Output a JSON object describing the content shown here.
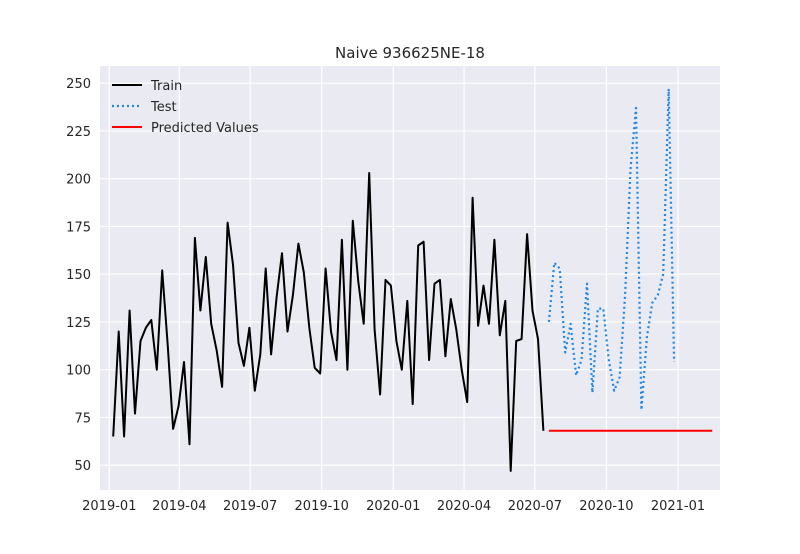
{
  "chart_data": {
    "type": "line",
    "title": "Naive 936625NE-18",
    "xlabel": "",
    "ylabel": "",
    "ylim": [
      37,
      259
    ],
    "xlim": [
      "2018-12-20",
      "2021-02-24"
    ],
    "x_ticks": [
      "2019-01",
      "2019-04",
      "2019-07",
      "2019-10",
      "2020-01",
      "2020-04",
      "2020-07",
      "2020-10",
      "2021-01"
    ],
    "y_ticks": [
      50,
      75,
      100,
      125,
      150,
      175,
      200,
      225,
      250
    ],
    "grid": true,
    "legend_position": "top-left",
    "series": [
      {
        "name": "Train",
        "color": "#000000",
        "style": "solid",
        "points": [
          [
            "2019-01-06",
            65
          ],
          [
            "2019-01-13",
            120
          ],
          [
            "2019-01-20",
            65
          ],
          [
            "2019-01-27",
            131
          ],
          [
            "2019-02-03",
            77
          ],
          [
            "2019-02-10",
            115
          ],
          [
            "2019-02-17",
            122
          ],
          [
            "2019-02-24",
            126
          ],
          [
            "2019-03-03",
            100
          ],
          [
            "2019-03-10",
            152
          ],
          [
            "2019-03-17",
            113
          ],
          [
            "2019-03-24",
            69
          ],
          [
            "2019-03-31",
            81
          ],
          [
            "2019-04-07",
            104
          ],
          [
            "2019-04-14",
            61
          ],
          [
            "2019-04-21",
            169
          ],
          [
            "2019-04-28",
            131
          ],
          [
            "2019-05-05",
            159
          ],
          [
            "2019-05-12",
            124
          ],
          [
            "2019-05-19",
            110
          ],
          [
            "2019-05-26",
            91
          ],
          [
            "2019-06-02",
            177
          ],
          [
            "2019-06-09",
            155
          ],
          [
            "2019-06-16",
            114
          ],
          [
            "2019-06-23",
            102
          ],
          [
            "2019-06-30",
            122
          ],
          [
            "2019-07-07",
            89
          ],
          [
            "2019-07-14",
            108
          ],
          [
            "2019-07-21",
            153
          ],
          [
            "2019-07-28",
            108
          ],
          [
            "2019-08-04",
            138
          ],
          [
            "2019-08-11",
            161
          ],
          [
            "2019-08-18",
            120
          ],
          [
            "2019-08-25",
            139
          ],
          [
            "2019-09-01",
            166
          ],
          [
            "2019-09-08",
            151
          ],
          [
            "2019-09-15",
            122
          ],
          [
            "2019-09-22",
            101
          ],
          [
            "2019-09-29",
            98
          ],
          [
            "2019-10-06",
            153
          ],
          [
            "2019-10-13",
            120
          ],
          [
            "2019-10-20",
            105
          ],
          [
            "2019-10-27",
            168
          ],
          [
            "2019-11-03",
            100
          ],
          [
            "2019-11-10",
            178
          ],
          [
            "2019-11-17",
            146
          ],
          [
            "2019-11-24",
            124
          ],
          [
            "2019-12-01",
            203
          ],
          [
            "2019-12-08",
            121
          ],
          [
            "2019-12-15",
            87
          ],
          [
            "2019-12-22",
            147
          ],
          [
            "2019-12-29",
            144
          ],
          [
            "2020-01-05",
            115
          ],
          [
            "2020-01-12",
            100
          ],
          [
            "2020-01-19",
            136
          ],
          [
            "2020-01-26",
            82
          ],
          [
            "2020-02-02",
            165
          ],
          [
            "2020-02-09",
            167
          ],
          [
            "2020-02-16",
            105
          ],
          [
            "2020-02-23",
            145
          ],
          [
            "2020-03-01",
            147
          ],
          [
            "2020-03-08",
            107
          ],
          [
            "2020-03-15",
            137
          ],
          [
            "2020-03-22",
            121
          ],
          [
            "2020-03-29",
            100
          ],
          [
            "2020-04-05",
            83
          ],
          [
            "2020-04-12",
            190
          ],
          [
            "2020-04-19",
            123
          ],
          [
            "2020-04-26",
            144
          ],
          [
            "2020-05-03",
            124
          ],
          [
            "2020-05-10",
            168
          ],
          [
            "2020-05-17",
            118
          ],
          [
            "2020-05-24",
            136
          ],
          [
            "2020-05-31",
            47
          ],
          [
            "2020-06-07",
            115
          ],
          [
            "2020-06-14",
            116
          ],
          [
            "2020-06-21",
            171
          ],
          [
            "2020-06-28",
            131
          ],
          [
            "2020-07-05",
            116
          ],
          [
            "2020-07-12",
            68
          ]
        ]
      },
      {
        "name": "Test",
        "color": "#1e88e5",
        "style": "dotted",
        "points": [
          [
            "2020-07-19",
            125
          ],
          [
            "2020-07-26",
            156
          ],
          [
            "2020-08-02",
            153
          ],
          [
            "2020-08-09",
            109
          ],
          [
            "2020-08-16",
            124
          ],
          [
            "2020-08-23",
            97
          ],
          [
            "2020-08-30",
            105
          ],
          [
            "2020-09-06",
            145
          ],
          [
            "2020-09-13",
            88
          ],
          [
            "2020-09-20",
            132
          ],
          [
            "2020-09-27",
            132
          ],
          [
            "2020-10-04",
            105
          ],
          [
            "2020-10-11",
            89
          ],
          [
            "2020-10-18",
            96
          ],
          [
            "2020-10-25",
            139
          ],
          [
            "2020-11-01",
            205
          ],
          [
            "2020-11-08",
            237
          ],
          [
            "2020-11-15",
            79
          ],
          [
            "2020-11-22",
            117
          ],
          [
            "2020-11-29",
            135
          ],
          [
            "2020-12-06",
            139
          ],
          [
            "2020-12-13",
            150
          ],
          [
            "2020-12-20",
            247
          ],
          [
            "2020-12-27",
            104
          ]
        ]
      },
      {
        "name": "Predicted Values",
        "color": "#ff0000",
        "style": "solid",
        "points": [
          [
            "2020-07-19",
            68
          ],
          [
            "2021-02-14",
            68
          ]
        ]
      }
    ]
  }
}
